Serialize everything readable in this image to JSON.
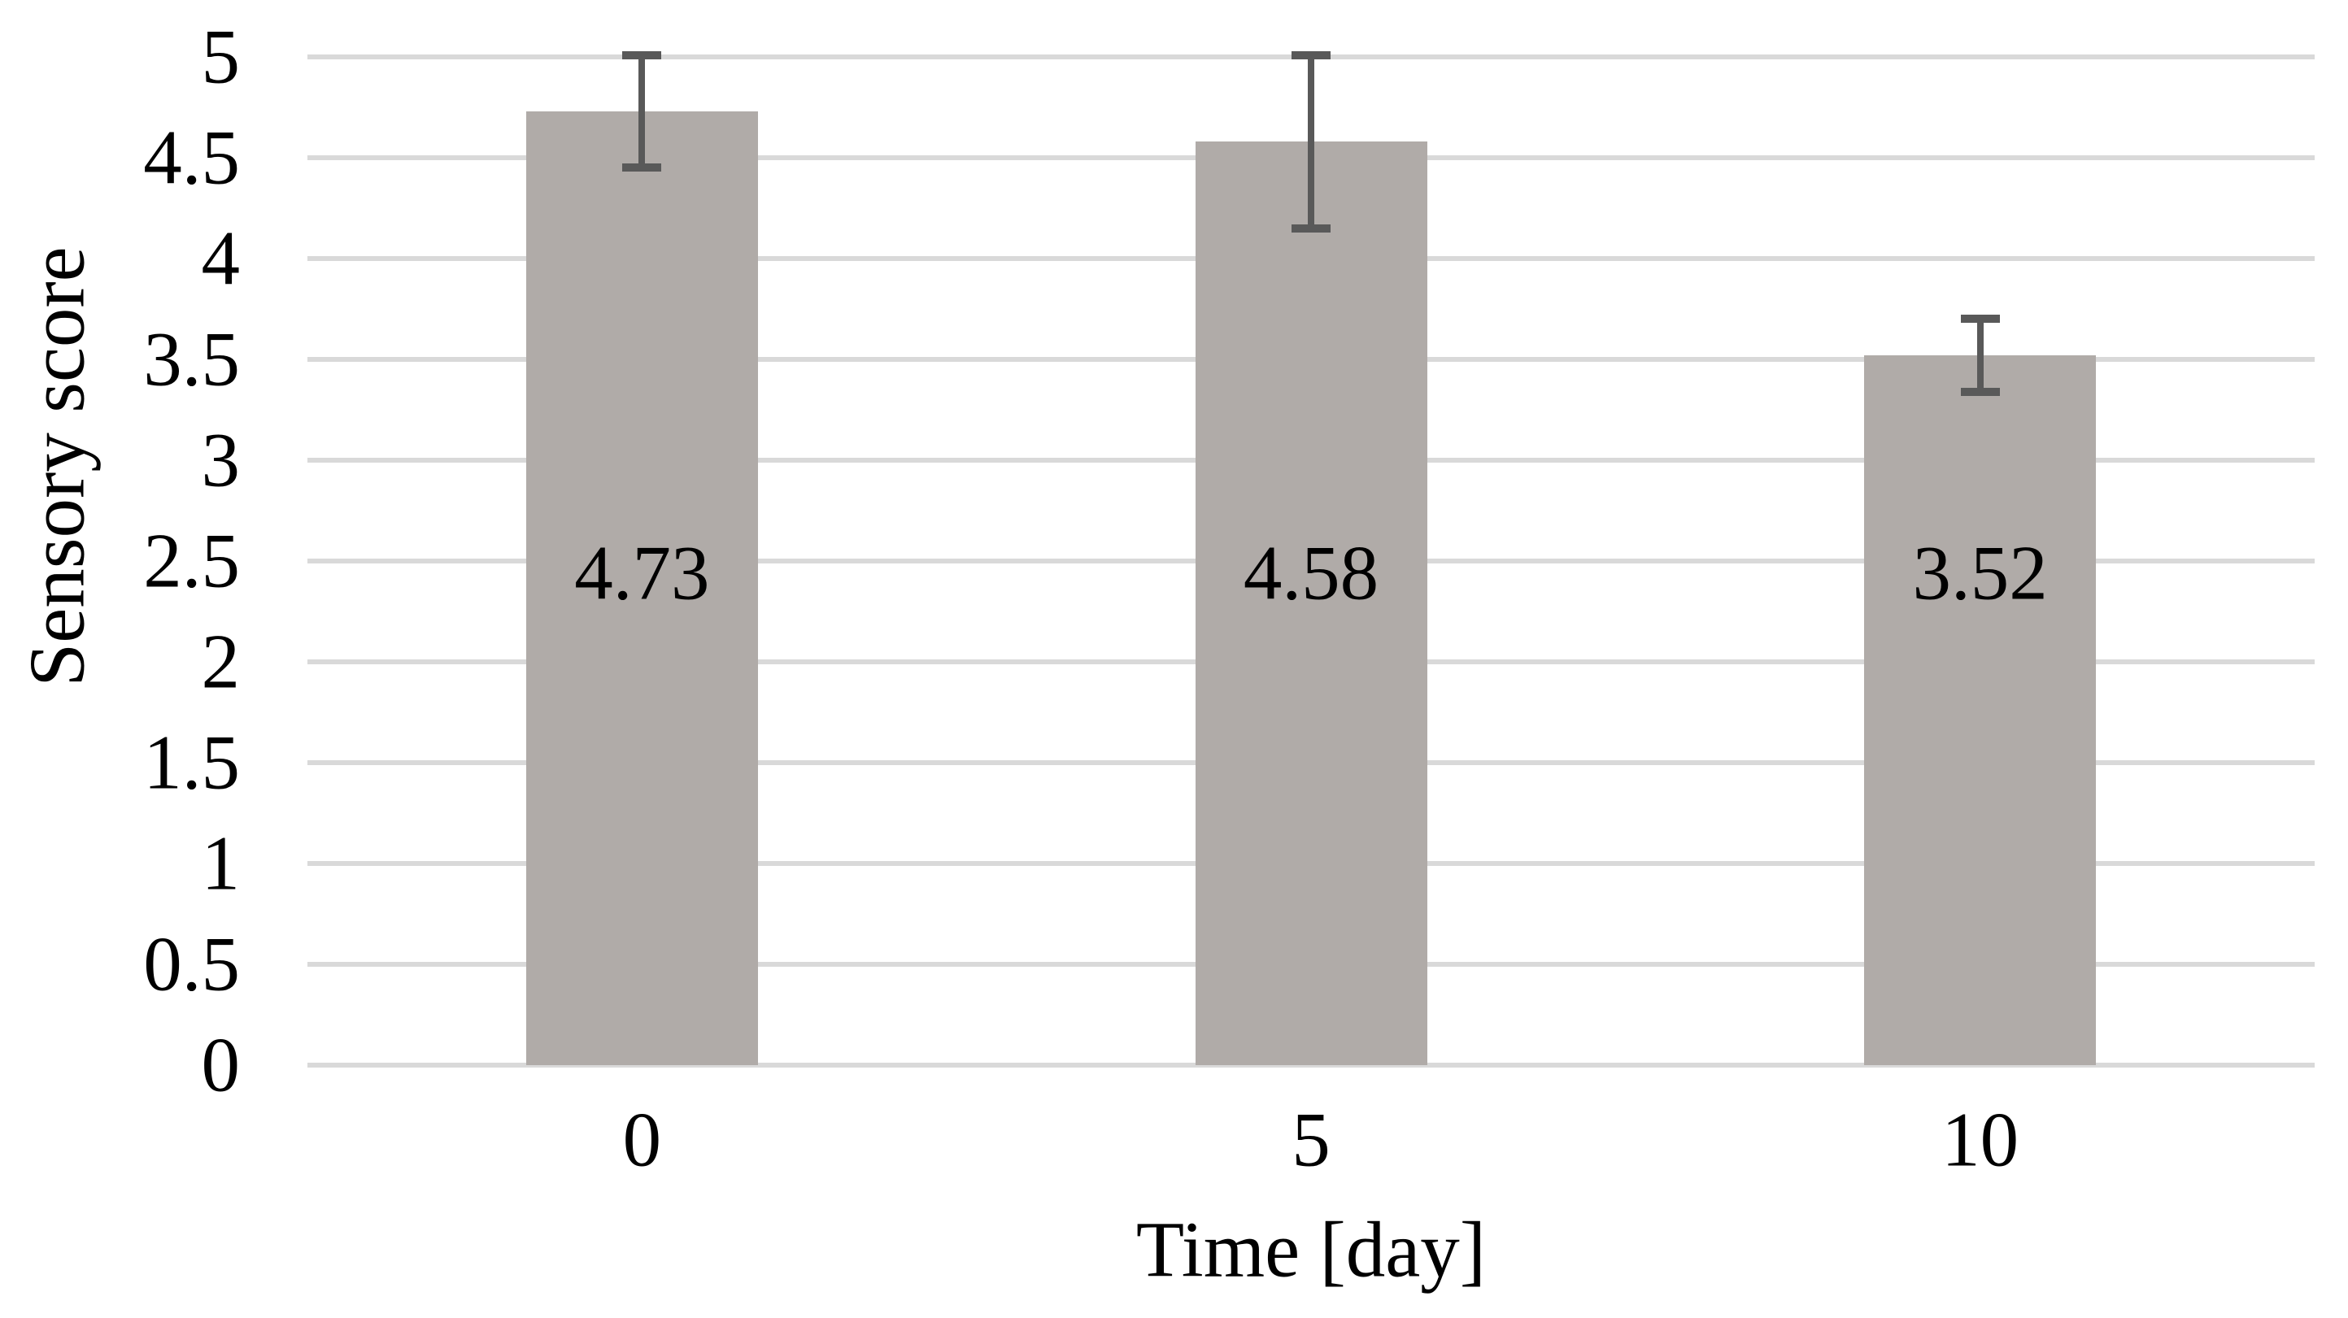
{
  "chart_data": {
    "type": "bar",
    "title": "",
    "xlabel": "Time [day]",
    "ylabel": "Sensory score",
    "categories": [
      "0",
      "5",
      "10"
    ],
    "series": [
      {
        "name": "Sensory score",
        "values": [
          4.73,
          4.58,
          3.52
        ],
        "errors": [
          0.28,
          0.43,
          0.18
        ],
        "data_labels": [
          "4.73",
          "4.58",
          "3.52"
        ]
      }
    ],
    "ylim": [
      0,
      5
    ],
    "ytick_step": 0.5,
    "ytick_labels": [
      "5",
      "4.5",
      "4",
      "3.5",
      "3",
      "2.5",
      "2",
      "1.5",
      "1",
      "0.5",
      "0"
    ],
    "grid": "horizontal",
    "legend": "none",
    "colors": {
      "bar": "#b0aba8",
      "error_bar": "#595959",
      "gridline": "#d9d9d9",
      "text": "#000000",
      "background": "#ffffff"
    },
    "layout": {
      "data_label_y_value": 2.44,
      "error_bar_caps": true
    }
  }
}
